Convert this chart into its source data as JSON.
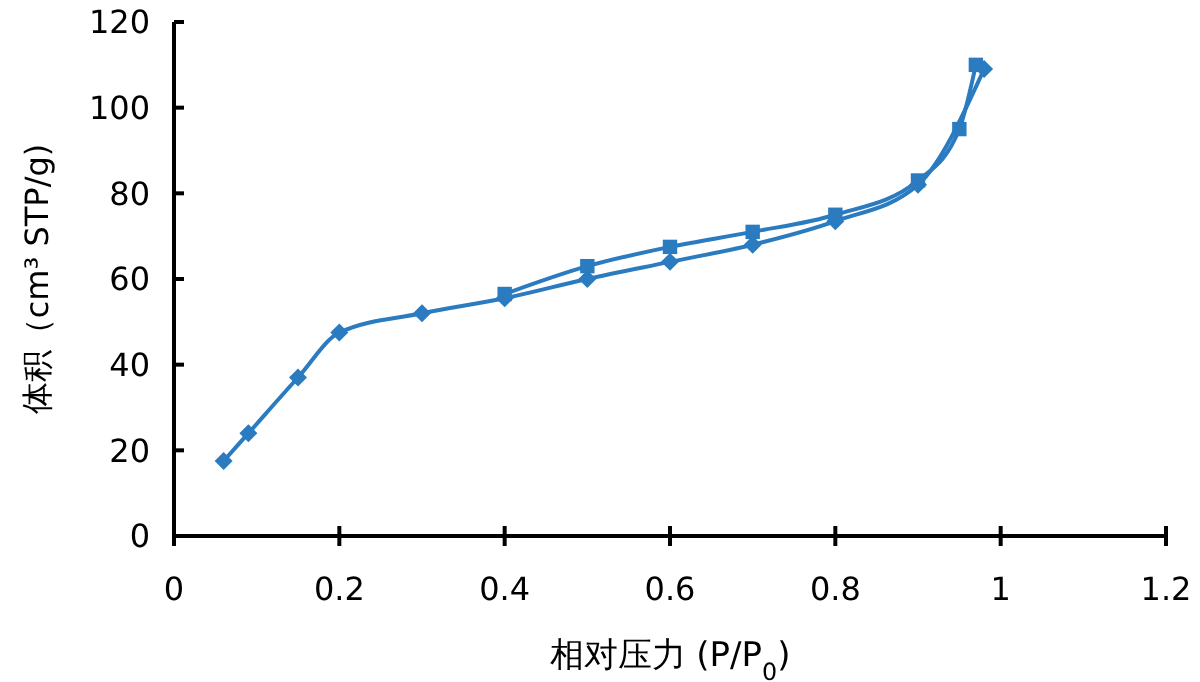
{
  "chart_data": {
    "type": "line",
    "xlabel": "相对压力 (P/P$_{0}$)",
    "ylabel": "体积（cm³ STP/g)",
    "xlim": [
      0,
      1.2
    ],
    "ylim": [
      0,
      120
    ],
    "xticks": [
      0,
      0.2,
      0.4,
      0.6,
      0.8,
      1,
      1.2
    ],
    "yticks": [
      0,
      20,
      40,
      60,
      80,
      100,
      120
    ],
    "grid": false,
    "series": [
      {
        "color": "#2a7bc0",
        "marker": "diamond",
        "x": [
          0.06,
          0.09,
          0.15,
          0.2,
          0.3,
          0.4,
          0.5,
          0.6,
          0.7,
          0.8,
          0.9,
          0.98
        ],
        "values": [
          17.5,
          24,
          37,
          47.5,
          52,
          55.5,
          60,
          64,
          68,
          73.5,
          82,
          109
        ]
      },
      {
        "color": "#2a7bc0",
        "marker": "square",
        "x": [
          0.97,
          0.95,
          0.9,
          0.8,
          0.7,
          0.6,
          0.5,
          0.4
        ],
        "values": [
          110,
          95,
          83,
          75,
          71,
          67.5,
          63,
          56.5
        ]
      }
    ]
  }
}
